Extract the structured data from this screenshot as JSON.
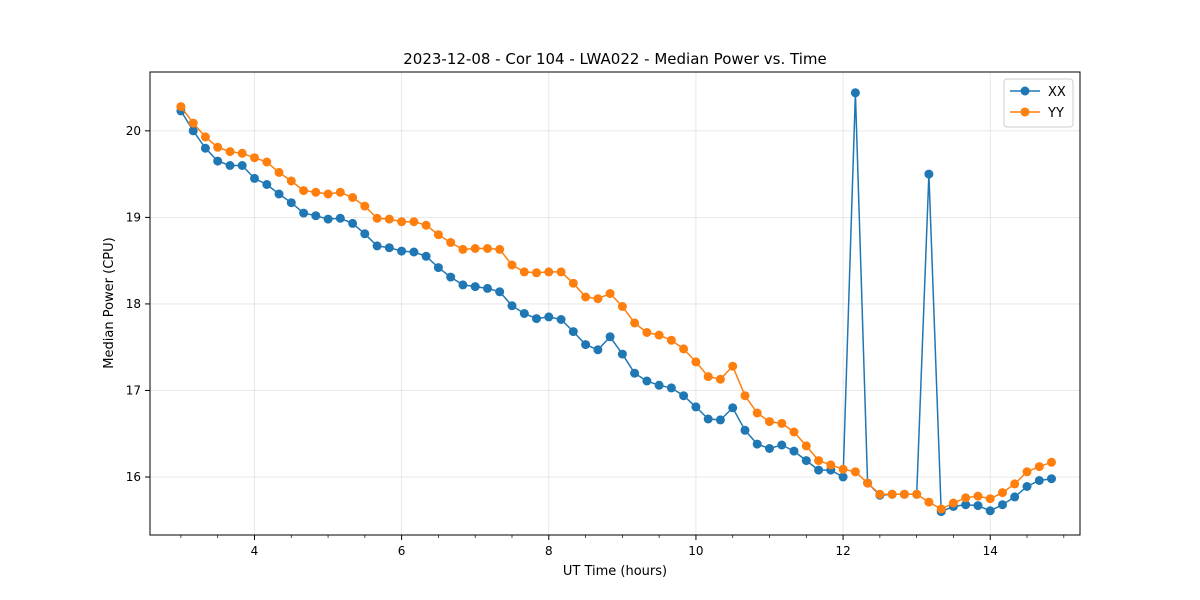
{
  "chart_data": {
    "type": "line",
    "title": "2023-12-08 - Cor 104 - LWA022 - Median Power vs. Time",
    "xlabel": "UT Time (hours)",
    "ylabel": "Median Power (CPU)",
    "xlim": [
      2.58,
      15.22
    ],
    "ylim": [
      15.33,
      20.68
    ],
    "xticks": [
      4,
      6,
      8,
      10,
      12,
      14
    ],
    "xtick_labels": [
      "4",
      "6",
      "8",
      "10",
      "12",
      "14"
    ],
    "yticks": [
      16,
      17,
      18,
      19,
      20
    ],
    "ytick_labels": [
      "16",
      "17",
      "18",
      "19",
      "20"
    ],
    "grid": true,
    "legend_position": "top-right",
    "x": [
      3.0,
      3.167,
      3.333,
      3.5,
      3.667,
      3.833,
      4.0,
      4.167,
      4.333,
      4.5,
      4.667,
      4.833,
      5.0,
      5.167,
      5.333,
      5.5,
      5.667,
      5.833,
      6.0,
      6.167,
      6.333,
      6.5,
      6.667,
      6.833,
      7.0,
      7.167,
      7.333,
      7.5,
      7.667,
      7.833,
      8.0,
      8.167,
      8.333,
      8.5,
      8.667,
      8.833,
      9.0,
      9.167,
      9.333,
      9.5,
      9.667,
      9.833,
      10.0,
      10.167,
      10.333,
      10.5,
      10.667,
      10.833,
      11.0,
      11.167,
      11.333,
      11.5,
      11.667,
      11.833,
      12.0,
      12.167,
      12.333,
      12.5,
      12.667,
      12.833,
      13.0,
      13.167,
      13.333,
      13.5,
      13.667,
      13.833,
      14.0,
      14.167,
      14.333,
      14.5,
      14.667,
      14.833
    ],
    "series": [
      {
        "name": "XX",
        "color": "#1f77b4",
        "values": [
          20.23,
          20.0,
          19.8,
          19.65,
          19.6,
          19.6,
          19.45,
          19.38,
          19.27,
          19.17,
          19.05,
          19.02,
          18.98,
          18.99,
          18.93,
          18.81,
          18.67,
          18.65,
          18.61,
          18.6,
          18.55,
          18.42,
          18.31,
          18.22,
          18.2,
          18.18,
          18.14,
          17.98,
          17.89,
          17.83,
          17.85,
          17.82,
          17.68,
          17.53,
          17.47,
          17.62,
          17.42,
          17.2,
          17.11,
          17.06,
          17.03,
          16.94,
          16.81,
          16.67,
          16.66,
          16.8,
          16.54,
          16.38,
          16.33,
          16.37,
          16.3,
          16.19,
          16.08,
          16.08,
          16.0,
          20.44,
          15.93,
          15.79,
          15.8,
          15.8,
          15.8,
          19.5,
          15.6,
          15.66,
          15.68,
          15.67,
          15.61,
          15.68,
          15.77,
          15.89,
          15.96,
          15.98
        ]
      },
      {
        "name": "YY",
        "color": "#ff7f0e",
        "values": [
          20.28,
          20.09,
          19.93,
          19.81,
          19.76,
          19.74,
          19.69,
          19.64,
          19.52,
          19.42,
          19.31,
          19.29,
          19.27,
          19.29,
          19.23,
          19.13,
          18.99,
          18.98,
          18.95,
          18.95,
          18.91,
          18.8,
          18.71,
          18.63,
          18.64,
          18.64,
          18.63,
          18.45,
          18.37,
          18.36,
          18.37,
          18.37,
          18.24,
          18.08,
          18.06,
          18.12,
          17.97,
          17.78,
          17.67,
          17.64,
          17.58,
          17.48,
          17.33,
          17.16,
          17.13,
          17.28,
          16.94,
          16.74,
          16.64,
          16.62,
          16.52,
          16.36,
          16.19,
          16.14,
          16.09,
          16.06,
          15.93,
          15.8,
          15.8,
          15.8,
          15.8,
          15.71,
          15.63,
          15.7,
          15.76,
          15.78,
          15.75,
          15.82,
          15.92,
          16.06,
          16.12,
          16.17
        ]
      }
    ]
  }
}
